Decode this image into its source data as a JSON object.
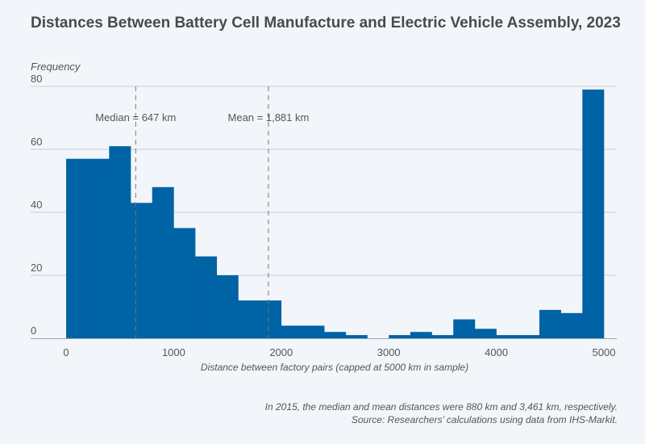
{
  "title": "Distances Between Battery Cell Manufacture and Electric Vehicle Assembly, 2023",
  "notes": {
    "line1": "In 2015, the median and mean distances were 880 km and 3,461 km, respectively.",
    "line2": "Source: Researchers’ calculations using data from IHS-Markit."
  },
  "colors": {
    "bar": "#0063a5",
    "grid": "#c5ced8",
    "ref_line": "#777777",
    "background": "#f2f6fa"
  },
  "chart_data": {
    "type": "bar",
    "title": "Distances Between Battery Cell Manufacture and Electric Vehicle Assembly, 2023",
    "xlabel": "Distance between factory pairs (capped at 5000 km in sample)",
    "ylabel": "Frequency",
    "xlim": [
      0,
      5000
    ],
    "ylim": [
      0,
      80
    ],
    "xticks": [
      0,
      1000,
      2000,
      3000,
      4000,
      5000
    ],
    "yticks": [
      0,
      20,
      40,
      60,
      80
    ],
    "grid": true,
    "bin_width": 200,
    "bins": [
      {
        "start": 0,
        "value": 57
      },
      {
        "start": 200,
        "value": 57
      },
      {
        "start": 400,
        "value": 61
      },
      {
        "start": 600,
        "value": 43
      },
      {
        "start": 800,
        "value": 48
      },
      {
        "start": 1000,
        "value": 35
      },
      {
        "start": 1200,
        "value": 26
      },
      {
        "start": 1400,
        "value": 20
      },
      {
        "start": 1600,
        "value": 12
      },
      {
        "start": 1800,
        "value": 12
      },
      {
        "start": 2000,
        "value": 4
      },
      {
        "start": 2200,
        "value": 4
      },
      {
        "start": 2400,
        "value": 2
      },
      {
        "start": 2600,
        "value": 1
      },
      {
        "start": 2800,
        "value": 0
      },
      {
        "start": 3000,
        "value": 1
      },
      {
        "start": 3200,
        "value": 2
      },
      {
        "start": 3400,
        "value": 1
      },
      {
        "start": 3600,
        "value": 6
      },
      {
        "start": 3800,
        "value": 3
      },
      {
        "start": 4000,
        "value": 1
      },
      {
        "start": 4200,
        "value": 1
      },
      {
        "start": 4400,
        "value": 9
      },
      {
        "start": 4600,
        "value": 8
      },
      {
        "start": 4800,
        "value": 79
      }
    ],
    "reference_lines": [
      {
        "label": "Median = 647 km",
        "x": 647
      },
      {
        "label": "Mean = 1,881 km",
        "x": 1881
      }
    ]
  }
}
